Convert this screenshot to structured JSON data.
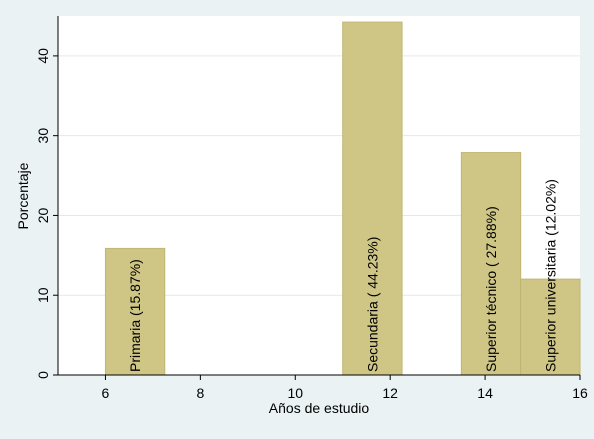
{
  "chart_data": {
    "type": "bar",
    "xlabel": "Años de estudio",
    "ylabel": "Porcentaje",
    "xlim": [
      5,
      16
    ],
    "ylim": [
      0,
      45
    ],
    "xticks": [
      6,
      8,
      10,
      12,
      14,
      16
    ],
    "yticks": [
      0,
      10,
      20,
      30,
      40
    ],
    "grid": true,
    "colors": {
      "background": "#eaf2f3",
      "plot_area": "#ffffff",
      "bar_fill": "#cfc686",
      "bar_stroke": "#bfb672",
      "grid": "#e3e9ea"
    },
    "bars": [
      {
        "x0": 6,
        "x1": 7.25,
        "value": 15.87,
        "label": "Primaria (15.87%)"
      },
      {
        "x0": 11,
        "x1": 12.25,
        "value": 44.23,
        "label": "Secundaria ( 44.23%)"
      },
      {
        "x0": 13.5,
        "x1": 14.75,
        "value": 27.88,
        "label": "Superior técnico ( 27.88%)"
      },
      {
        "x0": 14.75,
        "x1": 16,
        "value": 12.02,
        "label": "Superior universitaria (12.02%)"
      }
    ]
  }
}
